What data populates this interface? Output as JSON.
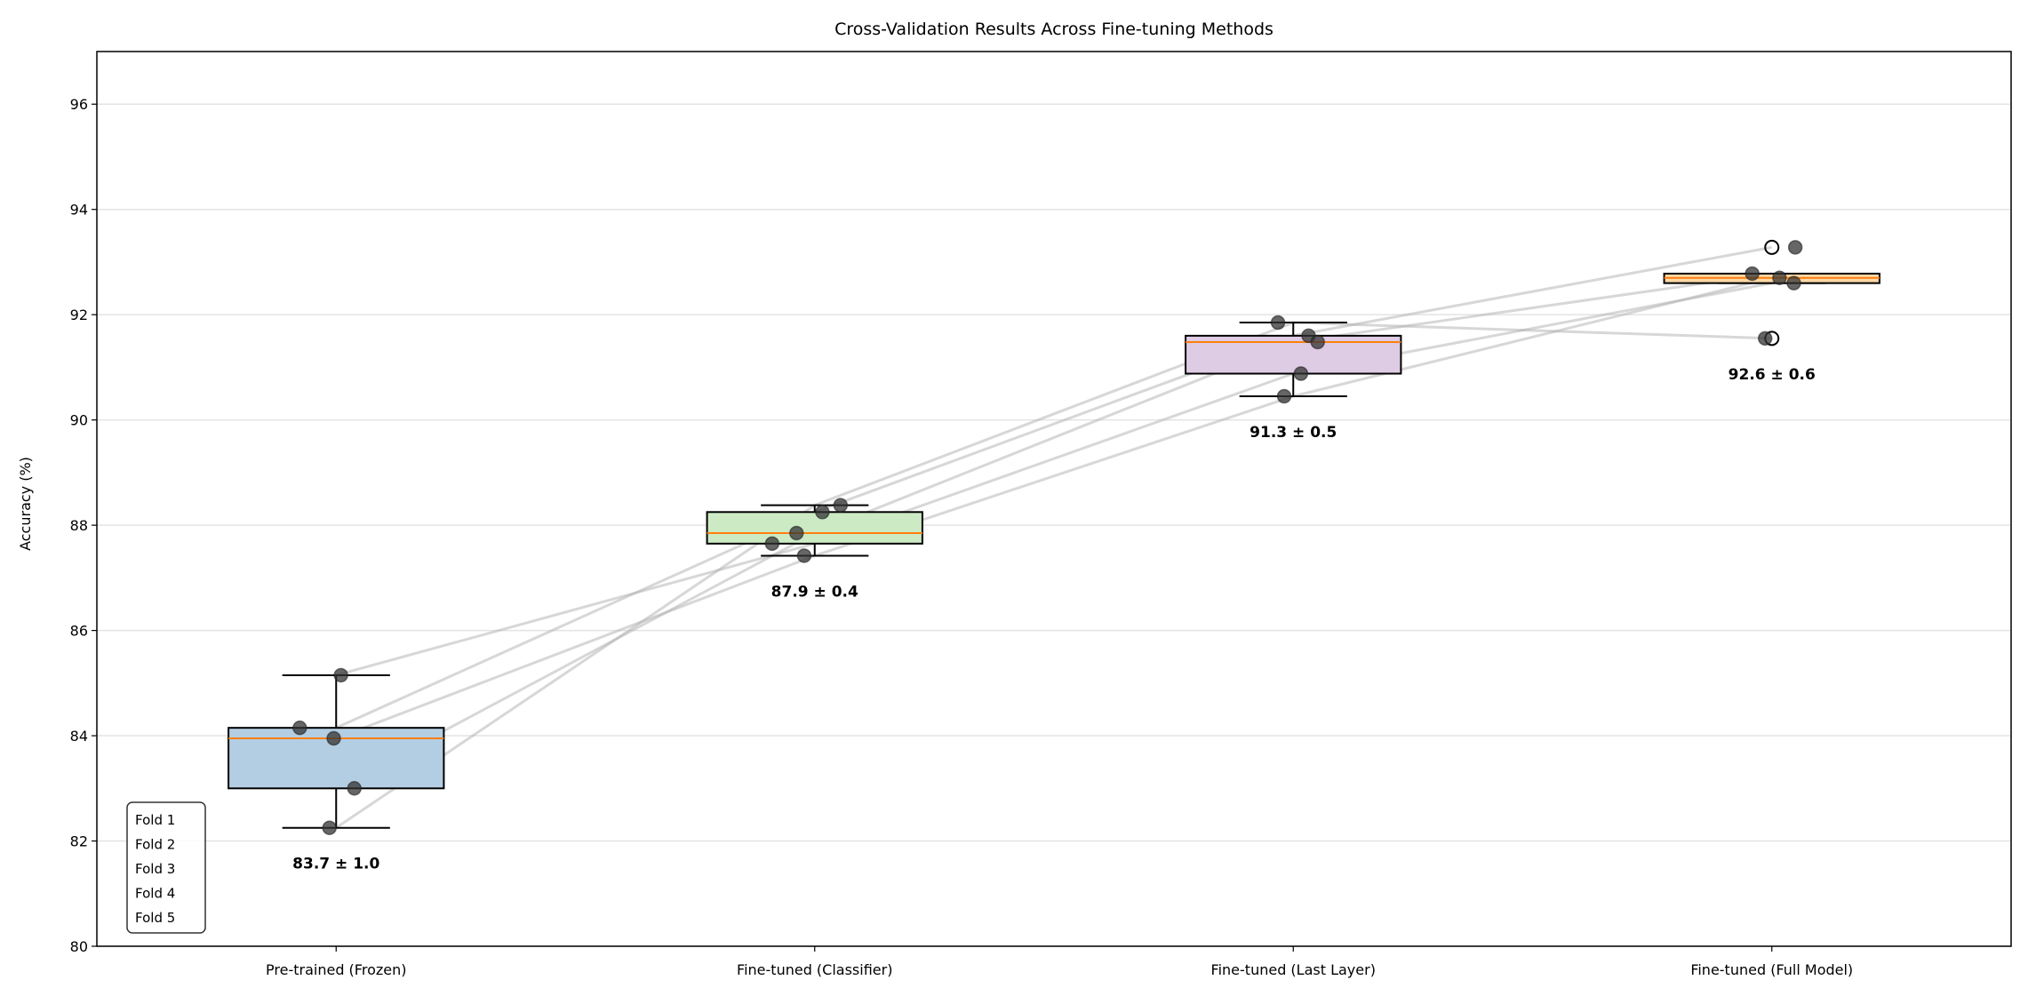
{
  "chart_data": {
    "type": "box",
    "title": "Cross-Validation Results Across Fine-tuning Methods",
    "xlabel": "",
    "ylabel": "Accuracy (%)",
    "ylim": [
      80,
      97
    ],
    "xlim": [
      0.5,
      4.5
    ],
    "yticks": [
      80,
      82,
      84,
      86,
      88,
      90,
      92,
      94,
      96
    ],
    "grid": "y",
    "categories": [
      "Pre-trained (Frozen)",
      "Fine-tuned (Classifier)",
      "Fine-tuned (Last Layer)",
      "Fine-tuned (Full Model)"
    ],
    "box_colors": [
      "#b3cde3",
      "#ccebc5",
      "#decbe4",
      "#fed9a6"
    ],
    "median_color": "#ff7f0e",
    "fold_values": [
      {
        "name": "Fold 1",
        "values": [
          85.15,
          87.65,
          90.88,
          92.6
        ]
      },
      {
        "name": "Fold 2",
        "values": [
          84.15,
          88.25,
          91.6,
          93.28
        ]
      },
      {
        "name": "Fold 3",
        "values": [
          83.95,
          87.42,
          90.45,
          92.7
        ]
      },
      {
        "name": "Fold 4",
        "values": [
          83.0,
          87.85,
          91.48,
          92.78
        ]
      },
      {
        "name": "Fold 5",
        "values": [
          82.25,
          88.38,
          91.85,
          91.55
        ]
      }
    ],
    "boxes": [
      {
        "q1": 83.0,
        "median": 83.95,
        "q3": 84.15,
        "whisker_low": 82.25,
        "whisker_high": 85.15,
        "outliers": []
      },
      {
        "q1": 87.65,
        "median": 87.85,
        "q3": 88.25,
        "whisker_low": 87.42,
        "whisker_high": 88.38,
        "outliers": []
      },
      {
        "q1": 90.88,
        "median": 91.48,
        "q3": 91.6,
        "whisker_low": 90.45,
        "whisker_high": 91.85,
        "outliers": []
      },
      {
        "q1": 92.6,
        "median": 92.7,
        "q3": 92.78,
        "whisker_low": 92.6,
        "whisker_high": 92.78,
        "outliers": [
          93.28,
          91.55
        ]
      }
    ],
    "points": [
      [
        {
          "x": 1.01,
          "y": 85.15
        },
        {
          "x": 0.924,
          "y": 84.15
        },
        {
          "x": 0.995,
          "y": 83.95
        },
        {
          "x": 1.038,
          "y": 83.0
        },
        {
          "x": 0.986,
          "y": 82.25
        }
      ],
      [
        {
          "x": 2.054,
          "y": 88.38
        },
        {
          "x": 2.016,
          "y": 88.25
        },
        {
          "x": 1.962,
          "y": 87.85
        },
        {
          "x": 1.911,
          "y": 87.65
        },
        {
          "x": 1.978,
          "y": 87.42
        }
      ],
      [
        {
          "x": 2.968,
          "y": 91.85
        },
        {
          "x": 3.032,
          "y": 91.6
        },
        {
          "x": 3.051,
          "y": 91.48
        },
        {
          "x": 3.016,
          "y": 90.88
        },
        {
          "x": 2.981,
          "y": 90.45
        }
      ],
      [
        {
          "x": 4.049,
          "y": 93.28
        },
        {
          "x": 3.959,
          "y": 92.78
        },
        {
          "x": 4.016,
          "y": 92.7
        },
        {
          "x": 4.046,
          "y": 92.6
        },
        {
          "x": 3.986,
          "y": 91.55
        }
      ]
    ],
    "stat_labels": [
      "83.7 ± 1.0",
      "87.9 ± 0.4",
      "91.3 ± 0.5",
      "92.6 ± 0.6"
    ],
    "legend": {
      "entries": [
        "Fold 1",
        "Fold 2",
        "Fold 3",
        "Fold 4",
        "Fold 5"
      ],
      "placement": "lower-left"
    }
  }
}
